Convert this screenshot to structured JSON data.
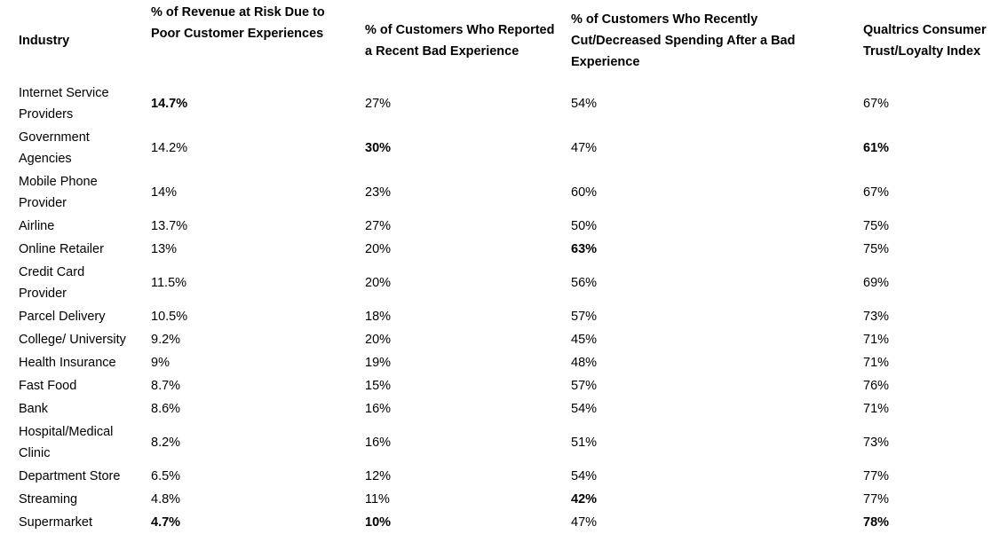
{
  "headers": [
    "Industry",
    "% of Revenue at Risk Due to Poor Customer Experiences",
    "% of Customers Who Reported a Recent Bad Experience",
    "% of Customers Who Recently Cut/Decreased Spending After a Bad Experience",
    "Qualtrics Consumer Trust/Loyalty Index"
  ],
  "rows": [
    {
      "industry": "Internet Service Providers",
      "revenue_at_risk": "14.7%",
      "bad_experience": "27%",
      "cut_spending": "54%",
      "trust_index": "67%",
      "tall": true,
      "bold": [
        1
      ]
    },
    {
      "industry": "Government Agencies",
      "revenue_at_risk": "14.2%",
      "bad_experience": "30%",
      "cut_spending": "47%",
      "trust_index": "61%",
      "tall": true,
      "bold": [
        2,
        4
      ]
    },
    {
      "industry": "Mobile Phone Provider",
      "revenue_at_risk": "14%",
      "bad_experience": "23%",
      "cut_spending": "60%",
      "trust_index": "67%",
      "tall": true,
      "bold": []
    },
    {
      "industry": "Airline",
      "revenue_at_risk": "13.7%",
      "bad_experience": "27%",
      "cut_spending": "50%",
      "trust_index": "75%",
      "tall": false,
      "bold": []
    },
    {
      "industry": "Online Retailer",
      "revenue_at_risk": "13%",
      "bad_experience": "20%",
      "cut_spending": "63%",
      "trust_index": "75%",
      "tall": false,
      "bold": [
        3
      ]
    },
    {
      "industry": "Credit Card Provider",
      "revenue_at_risk": "11.5%",
      "bad_experience": "20%",
      "cut_spending": "56%",
      "trust_index": "69%",
      "tall": false,
      "bold": []
    },
    {
      "industry": "Parcel Delivery",
      "revenue_at_risk": "10.5%",
      "bad_experience": "18%",
      "cut_spending": "57%",
      "trust_index": "73%",
      "tall": false,
      "bold": []
    },
    {
      "industry": "College/ University",
      "revenue_at_risk": "9.2%",
      "bad_experience": "20%",
      "cut_spending": "45%",
      "trust_index": "71%",
      "tall": false,
      "bold": []
    },
    {
      "industry": "Health Insurance",
      "revenue_at_risk": "9%",
      "bad_experience": "19%",
      "cut_spending": "48%",
      "trust_index": "71%",
      "tall": false,
      "bold": []
    },
    {
      "industry": "Fast Food",
      "revenue_at_risk": "8.7%",
      "bad_experience": "15%",
      "cut_spending": "57%",
      "trust_index": "76%",
      "tall": false,
      "bold": []
    },
    {
      "industry": "Bank",
      "revenue_at_risk": "8.6%",
      "bad_experience": "16%",
      "cut_spending": "54%",
      "trust_index": "71%",
      "tall": false,
      "bold": []
    },
    {
      "industry": "Hospital/Medical Clinic",
      "revenue_at_risk": "8.2%",
      "bad_experience": "16%",
      "cut_spending": "51%",
      "trust_index": "73%",
      "tall": true,
      "bold": []
    },
    {
      "industry": "Department Store",
      "revenue_at_risk": "6.5%",
      "bad_experience": "12%",
      "cut_spending": "54%",
      "trust_index": "77%",
      "tall": false,
      "bold": []
    },
    {
      "industry": "Streaming",
      "revenue_at_risk": "4.8%",
      "bad_experience": "11%",
      "cut_spending": "42%",
      "trust_index": "77%",
      "tall": false,
      "bold": [
        3
      ]
    },
    {
      "industry": "Supermarket",
      "revenue_at_risk": "4.7%",
      "bad_experience": "10%",
      "cut_spending": "47%",
      "trust_index": "78%",
      "tall": false,
      "bold": [
        1,
        2,
        4
      ]
    }
  ]
}
